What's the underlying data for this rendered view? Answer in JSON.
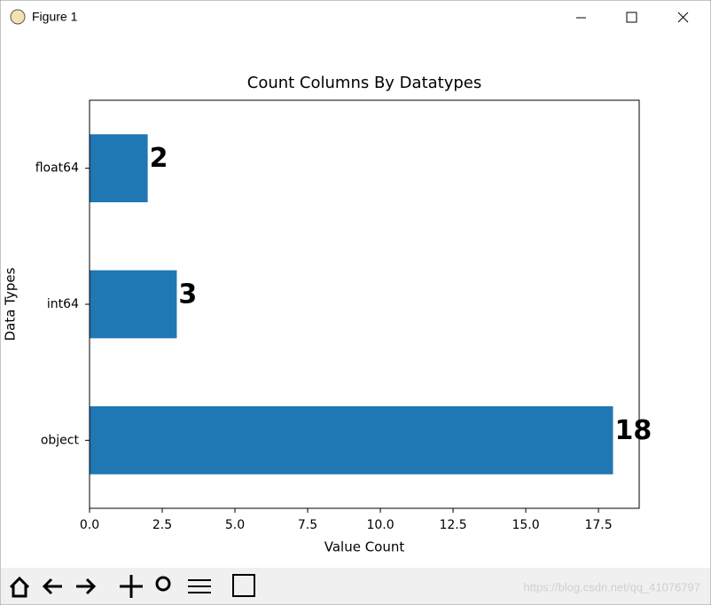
{
  "window": {
    "title": "Figure 1"
  },
  "chart_data": {
    "type": "barh",
    "title": "Count Columns By Datatypes",
    "x_label": "Value Count",
    "y_label": "Data Types",
    "categories": [
      "object",
      "int64",
      "float64"
    ],
    "values": [
      18,
      3,
      2
    ],
    "color": "#1f77b4",
    "xlim": [
      0,
      18.9
    ],
    "xticks": [
      {
        "value": 0,
        "label": "0.0"
      },
      2.5,
      {
        "value": 5,
        "label": "5.0"
      },
      7.5,
      {
        "value": 10,
        "label": "10.0"
      },
      12.5,
      {
        "value": 15,
        "label": "15.0"
      },
      17.5
    ],
    "grid": false
  },
  "watermark": "https://blog.csdn.net/qq_41076797"
}
